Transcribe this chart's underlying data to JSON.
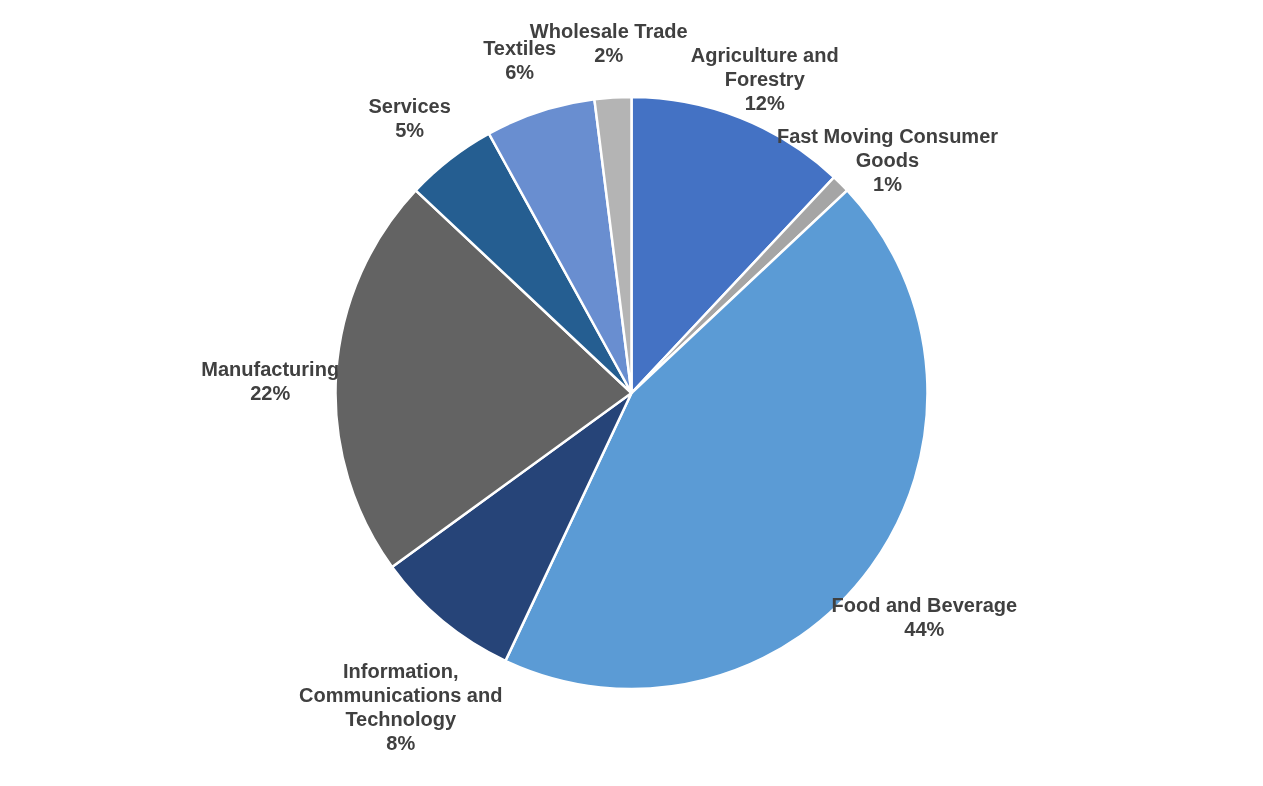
{
  "chart_data": {
    "type": "pie",
    "categories": [
      "Agriculture and Forestry",
      "Fast Moving Consumer Goods",
      "Food and Beverage",
      "Information, Communications and Technology",
      "Manufacturing",
      "Services",
      "Textiles",
      "Wholesale Trade"
    ],
    "values": [
      12,
      1,
      44,
      8,
      22,
      5,
      6,
      2
    ],
    "value_labels": [
      "12%",
      "1%",
      "44%",
      "8%",
      "22%",
      "5%",
      "6%",
      "2%"
    ],
    "colors": [
      "#4472c4",
      "#a5a5a5",
      "#5b9bd5",
      "#264478",
      "#636363",
      "#255e91",
      "#698ed0",
      "#b4b4b4"
    ]
  }
}
